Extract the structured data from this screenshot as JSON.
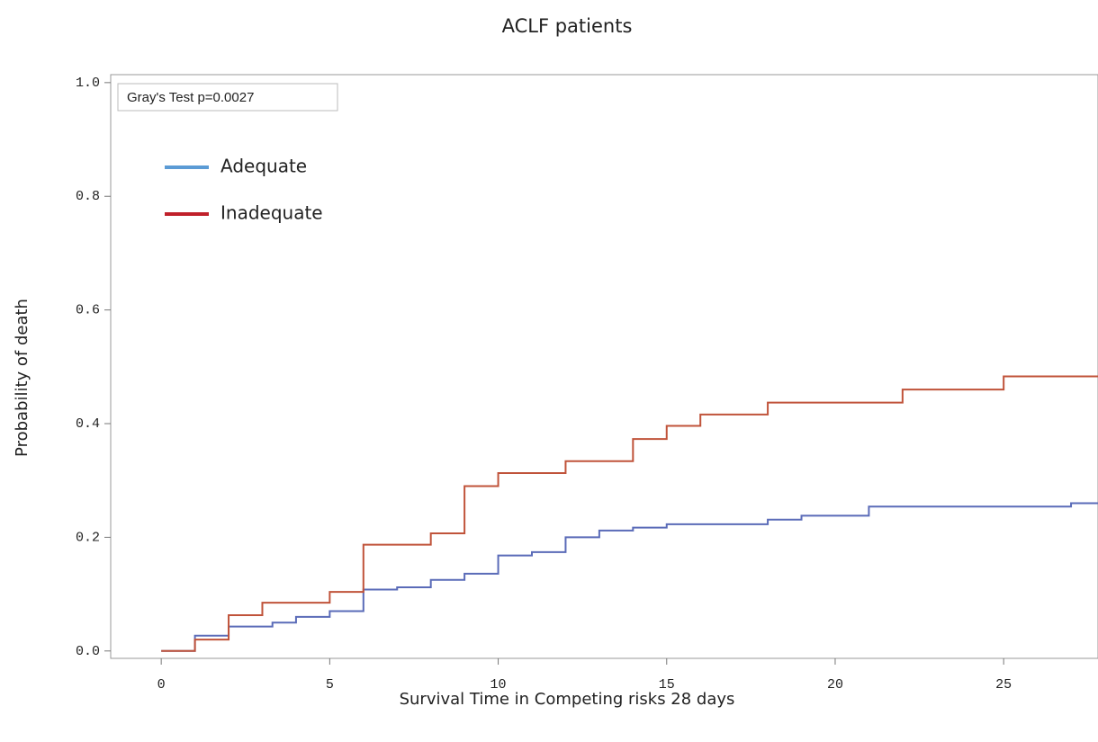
{
  "chart_data": {
    "type": "step",
    "title": "ACLF patients",
    "xlabel": "Survival Time in Competing risks 28 days",
    "ylabel": "Probability of death",
    "annotation": "Gray's Test p=0.0027",
    "xlim": [
      -1.5,
      27.8
    ],
    "ylim": [
      -0.013,
      1.014
    ],
    "xticks": [
      0,
      5,
      10,
      15,
      20,
      25
    ],
    "yticks": [
      {
        "value": 0,
        "label": "0.0"
      },
      {
        "value": 0.2,
        "label": "0.2"
      },
      {
        "value": 0.4,
        "label": "0.4"
      },
      {
        "value": 0.6,
        "label": "0.6"
      },
      {
        "value": 0.8,
        "label": "0.8"
      },
      {
        "value": 1,
        "label": "1.0"
      }
    ],
    "legend": "upper left",
    "series": [
      {
        "name": "Adequate",
        "color": "#5a6bb8",
        "legend_color": "#5b9bd5",
        "x": [
          0,
          1,
          2,
          3.3,
          4,
          5,
          6,
          7,
          8,
          9,
          10,
          11,
          12,
          13,
          14,
          15,
          18,
          19,
          21,
          27,
          28
        ],
        "values": [
          0,
          0.027,
          0.043,
          0.05,
          0.06,
          0.07,
          0.108,
          0.112,
          0.125,
          0.136,
          0.168,
          0.174,
          0.2,
          0.212,
          0.217,
          0.223,
          0.231,
          0.238,
          0.254,
          0.26,
          0.26
        ]
      },
      {
        "name": "Inadequate",
        "color": "#c0533a",
        "legend_color": "#c0202a",
        "x": [
          0,
          1,
          2,
          3,
          5,
          6,
          8,
          9,
          10,
          12,
          14,
          15,
          16,
          18,
          22,
          25,
          28
        ],
        "values": [
          0,
          0.02,
          0.063,
          0.085,
          0.104,
          0.187,
          0.207,
          0.29,
          0.313,
          0.334,
          0.373,
          0.396,
          0.416,
          0.437,
          0.46,
          0.483,
          0.483
        ]
      }
    ]
  }
}
